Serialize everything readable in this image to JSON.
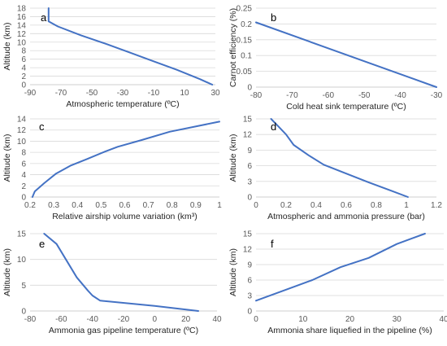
{
  "chart_data": [
    {
      "panel": "a",
      "type": "line",
      "xlabel": "Atmospheric temperature (ºC)",
      "ylabel": "Altitude (km)",
      "xlim": [
        -90,
        30
      ],
      "ylim": [
        0,
        18
      ],
      "xticks": [
        -90,
        -70,
        -50,
        -30,
        -10,
        10,
        30
      ],
      "yticks": [
        0,
        2,
        4,
        6,
        8,
        10,
        12,
        14,
        16,
        18
      ],
      "grid": "horizontal",
      "series": [
        {
          "x": [
            28,
            20,
            5,
            -10,
            -25,
            -40,
            -57,
            -72,
            -78,
            -78,
            -78
          ],
          "y": [
            0,
            1.3,
            3.5,
            5.5,
            7.5,
            9.5,
            11.6,
            13.7,
            14.9,
            16.5,
            18
          ]
        }
      ]
    },
    {
      "panel": "b",
      "type": "line",
      "xlabel": "Cold heat sink temperature (ºC)",
      "ylabel": "Carnot efficiency (%)",
      "xlim": [
        -80,
        -30
      ],
      "ylim": [
        0,
        0.25
      ],
      "xticks": [
        -80,
        -70,
        -60,
        -50,
        -40,
        -30
      ],
      "yticks": [
        "0",
        "0.05",
        "0.1",
        "0.15",
        "0.2",
        "0.25"
      ],
      "grid": "horizontal",
      "series": [
        {
          "x": [
            -80,
            -30
          ],
          "y": [
            0.205,
            0
          ]
        }
      ]
    },
    {
      "panel": "c",
      "type": "line",
      "xlabel": "Relative airship volume variation (km³)",
      "ylabel": "Altitude (km)",
      "xlim": [
        0.2,
        1
      ],
      "ylim": [
        0,
        14
      ],
      "xticks": [
        "0.2",
        "0.3",
        "0.4",
        "0.5",
        "0.6",
        "0.7",
        "0.8",
        "0.9",
        "1"
      ],
      "yticks": [
        0,
        2,
        4,
        6,
        8,
        10,
        12,
        14
      ],
      "grid": "horizontal",
      "series": [
        {
          "x": [
            0.21,
            0.22,
            0.26,
            0.31,
            0.37,
            0.44,
            0.52,
            0.57,
            0.67,
            0.79,
            1.0
          ],
          "y": [
            0,
            1,
            2.5,
            4.2,
            5.6,
            6.8,
            8.2,
            9,
            10.2,
            11.7,
            13.5
          ]
        }
      ]
    },
    {
      "panel": "d",
      "type": "line",
      "xlabel": "Atmospheric and ammonia pressure (bar)",
      "ylabel": "Altitude (km)",
      "xlim": [
        0,
        1.2
      ],
      "ylim": [
        0,
        15
      ],
      "xticks": [
        "0",
        "0.2",
        "0.4",
        "0.6",
        "0.8",
        "1",
        "1.2"
      ],
      "yticks": [
        0,
        3,
        6,
        9,
        12,
        15
      ],
      "grid": "horizontal",
      "series": [
        {
          "x": [
            0.1,
            0.15,
            0.2,
            0.25,
            0.35,
            0.45,
            0.6,
            0.75,
            0.9,
            1.01
          ],
          "y": [
            15,
            13.5,
            12,
            10,
            8,
            6.2,
            4.5,
            2.8,
            1.2,
            0
          ]
        }
      ]
    },
    {
      "panel": "e",
      "type": "line",
      "xlabel": "Ammonia gas pipeline temperature (ºC)",
      "ylabel": "Altitude (km)",
      "xlim": [
        -80,
        40
      ],
      "ylim": [
        0,
        15
      ],
      "xticks": [
        -80,
        -60,
        -40,
        -20,
        0,
        20,
        40
      ],
      "yticks": [
        0,
        5,
        10,
        15
      ],
      "grid": "horizontal",
      "series": [
        {
          "x": [
            -71,
            -63,
            -57,
            -50,
            -43,
            -40,
            -35,
            0,
            28
          ],
          "y": [
            15,
            13,
            10,
            6.5,
            4,
            3,
            2,
            1,
            0
          ]
        }
      ]
    },
    {
      "panel": "f",
      "type": "line",
      "xlabel": "Ammonia share liquefied in the pipeline (%)",
      "ylabel": "Altitude (km)",
      "xlim": [
        0,
        40
      ],
      "ylim": [
        0,
        15
      ],
      "xticks": [
        0,
        10,
        20,
        30,
        40
      ],
      "yticks": [
        0,
        3,
        6,
        9,
        12,
        15
      ],
      "grid": "horizontal",
      "series": [
        {
          "x": [
            0,
            6,
            12,
            18,
            24,
            30,
            36
          ],
          "y": [
            2,
            4,
            6,
            8.5,
            10.3,
            13,
            15
          ]
        }
      ]
    }
  ],
  "style": {
    "line_color": "#4472c4",
    "grid_color": "#d9d9d9"
  }
}
